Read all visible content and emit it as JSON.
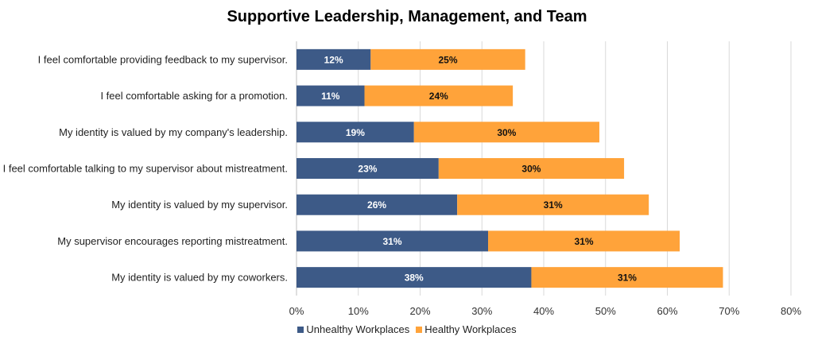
{
  "chart_data": {
    "type": "bar",
    "orientation": "horizontal",
    "stacked": true,
    "title": "Supportive Leadership, Management, and Team",
    "categories": [
      "I feel comfortable providing feedback to my supervisor.",
      "I feel comfortable asking for a promotion.",
      "My identity is valued by my company's leadership.",
      "I feel comfortable talking to my supervisor about mistreatment.",
      "My identity is valued by my supervisor.",
      "My supervisor encourages reporting mistreatment.",
      "My identity is valued by my coworkers."
    ],
    "series": [
      {
        "name": "Unhealthy Workplaces",
        "color": "#3d5a87",
        "label_color": "#ffffff",
        "values": [
          12,
          11,
          19,
          23,
          26,
          31,
          38
        ]
      },
      {
        "name": "Healthy Workplaces",
        "color": "#ffa33a",
        "label_color": "#111111",
        "values": [
          25,
          24,
          30,
          30,
          31,
          31,
          31
        ]
      }
    ],
    "xlim": [
      0,
      80
    ],
    "xticks": [
      0,
      10,
      20,
      30,
      40,
      50,
      60,
      70,
      80
    ],
    "tick_suffix": "%",
    "value_suffix": "%",
    "grid": "vertical",
    "legend_position": "bottom"
  }
}
